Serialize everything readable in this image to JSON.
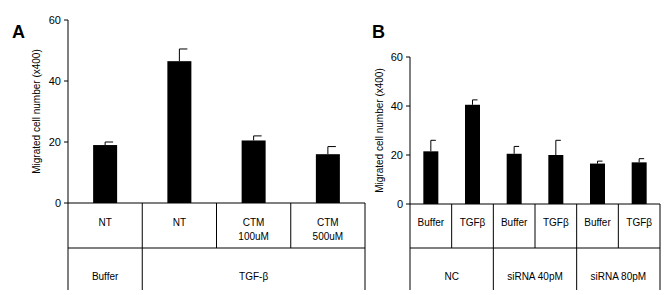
{
  "chart_data": [
    {
      "type": "bar",
      "title": "A",
      "y_label": "Migrated cell number (x400)",
      "categories": [
        "NT",
        "NT",
        "CTM\n100uM",
        "CTM\n500uM"
      ],
      "groups": [
        {
          "label": "Buffer",
          "size": 1
        },
        {
          "label": "TGF-β",
          "size": 3
        }
      ],
      "values": [
        19,
        46.5,
        20.5,
        16
      ],
      "errors": [
        1,
        4,
        1.5,
        2.5
      ],
      "color": "#000000",
      "ylim": [
        0,
        60
      ],
      "yticks": [
        0,
        20,
        40,
        60
      ],
      "grid": false
    },
    {
      "type": "bar",
      "title": "B",
      "y_label": "Migrated cell number (x400)",
      "categories": [
        "Buffer",
        "TGFβ",
        "Buffer",
        "TGFβ",
        "Buffer",
        "TGFβ"
      ],
      "groups": [
        {
          "label": "NC",
          "size": 2
        },
        {
          "label": "siRNA 40pM",
          "size": 2
        },
        {
          "label": "siRNA 80pM",
          "size": 2
        }
      ],
      "values": [
        21.5,
        40.5,
        20.5,
        20,
        16.5,
        17
      ],
      "errors": [
        4.5,
        2,
        3,
        6,
        1,
        1.5
      ],
      "color": "#000000",
      "ylim": [
        0,
        60
      ],
      "yticks": [
        0,
        20,
        40,
        60
      ],
      "grid": false
    }
  ]
}
